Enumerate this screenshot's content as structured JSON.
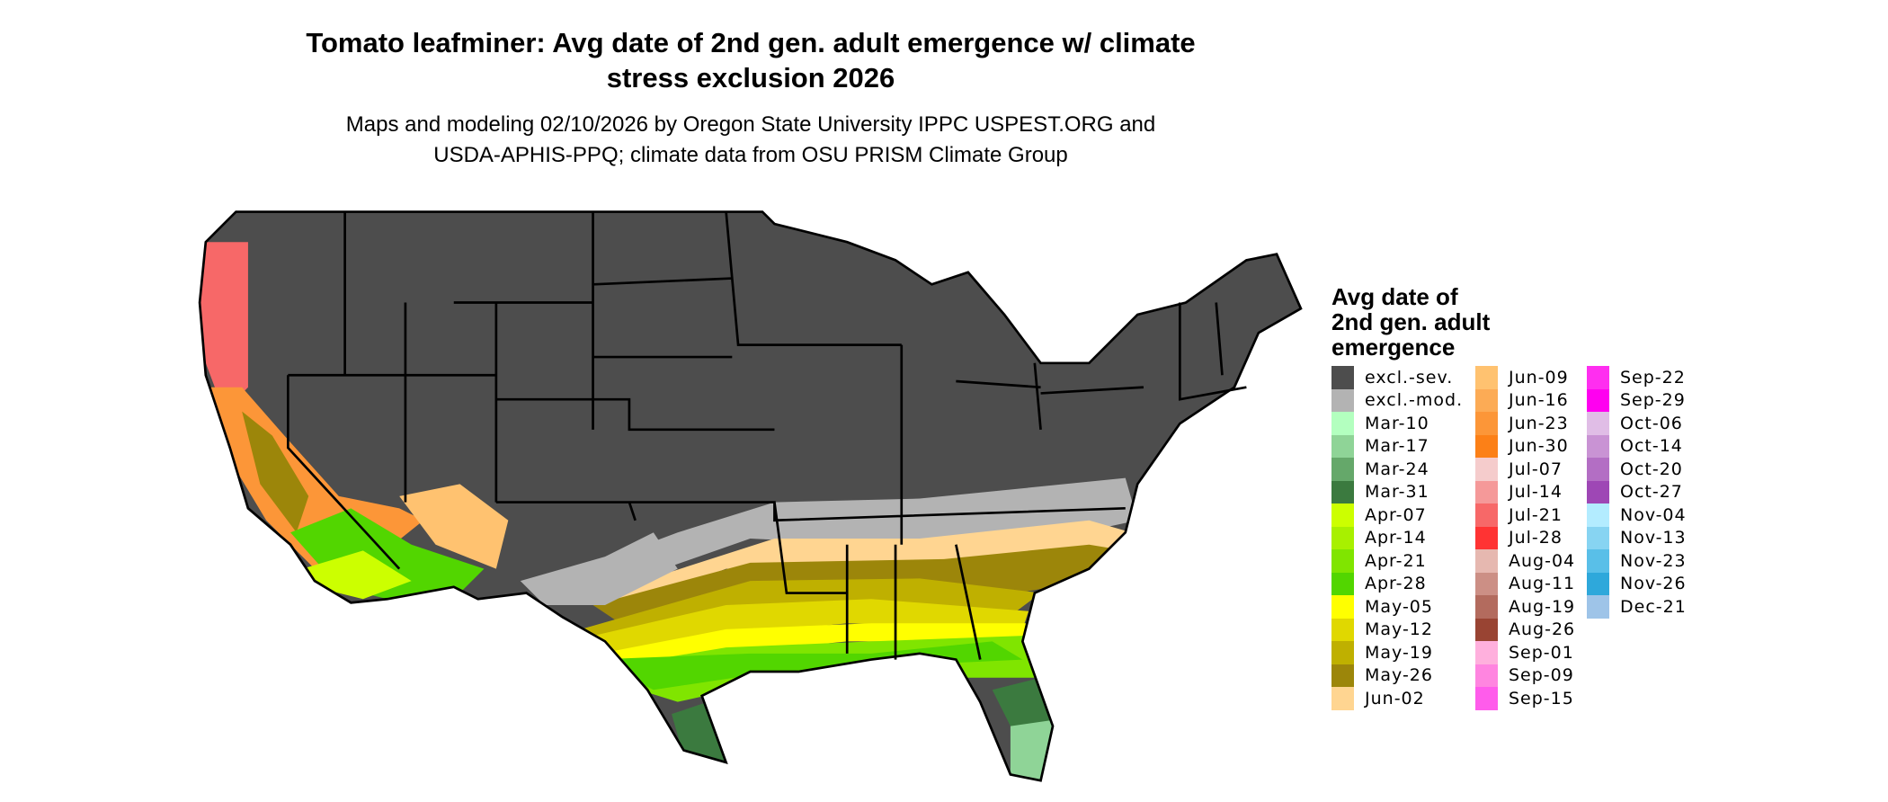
{
  "title": {
    "line1": "Tomato leafminer: Avg date of 2nd gen. adult emergence w/ climate",
    "line2": "stress exclusion 2026"
  },
  "subtitle": {
    "line1": "Maps and modeling 02/10/2026 by Oregon State University IPPC USPEST.ORG and",
    "line2": "USDA-APHIS-PPQ; climate data from OSU PRISM Climate Group"
  },
  "legend": {
    "title_lines": [
      "Avg date of",
      "2nd gen. adult",
      "emergence"
    ],
    "columns": [
      [
        {
          "label": "excl.-sev.",
          "color": "#4d4d4d"
        },
        {
          "label": "excl.-mod.",
          "color": "#b3b3b3"
        },
        {
          "label": "Mar-10",
          "color": "#b3ffbf"
        },
        {
          "label": "Mar-17",
          "color": "#8fd497"
        },
        {
          "label": "Mar-24",
          "color": "#65a86a"
        },
        {
          "label": "Mar-31",
          "color": "#3b7a3f"
        },
        {
          "label": "Apr-07",
          "color": "#ccff00"
        },
        {
          "label": "Apr-14",
          "color": "#a8f000"
        },
        {
          "label": "Apr-21",
          "color": "#80e500"
        },
        {
          "label": "Apr-28",
          "color": "#52d600"
        },
        {
          "label": "May-05",
          "color": "#ffff00"
        },
        {
          "label": "May-12",
          "color": "#e0d800"
        },
        {
          "label": "May-19",
          "color": "#bfb000"
        },
        {
          "label": "May-26",
          "color": "#9c860a"
        },
        {
          "label": "Jun-02",
          "color": "#ffd591"
        }
      ],
      [
        {
          "label": "Jun-09",
          "color": "#ffc270"
        },
        {
          "label": "Jun-16",
          "color": "#fcab55"
        },
        {
          "label": "Jun-23",
          "color": "#fc9638"
        },
        {
          "label": "Jun-30",
          "color": "#fc8017"
        },
        {
          "label": "Jul-07",
          "color": "#f5cccc"
        },
        {
          "label": "Jul-14",
          "color": "#f59999"
        },
        {
          "label": "Jul-21",
          "color": "#f76868"
        },
        {
          "label": "Jul-28",
          "color": "#ff3333"
        },
        {
          "label": "Aug-04",
          "color": "#e6b8b0"
        },
        {
          "label": "Aug-11",
          "color": "#cc8f85"
        },
        {
          "label": "Aug-19",
          "color": "#b36b5e"
        },
        {
          "label": "Aug-26",
          "color": "#994433"
        },
        {
          "label": "Sep-01",
          "color": "#ffb0dd"
        },
        {
          "label": "Sep-09",
          "color": "#ff85e0"
        },
        {
          "label": "Sep-15",
          "color": "#ff5ceb"
        }
      ],
      [
        {
          "label": "Sep-22",
          "color": "#ff2ef0"
        },
        {
          "label": "Sep-29",
          "color": "#ff00f0"
        },
        {
          "label": "Oct-06",
          "color": "#e0bde6"
        },
        {
          "label": "Oct-14",
          "color": "#c993d4"
        },
        {
          "label": "Oct-20",
          "color": "#b36ec4"
        },
        {
          "label": "Oct-27",
          "color": "#9e47b5"
        },
        {
          "label": "Nov-04",
          "color": "#b3ecff"
        },
        {
          "label": "Nov-13",
          "color": "#87d4f2"
        },
        {
          "label": "Nov-23",
          "color": "#59bfe8"
        },
        {
          "label": "Nov-26",
          "color": "#2ea8db"
        },
        {
          "label": "Dec-21",
          "color": "#9ec4e8"
        }
      ]
    ]
  }
}
